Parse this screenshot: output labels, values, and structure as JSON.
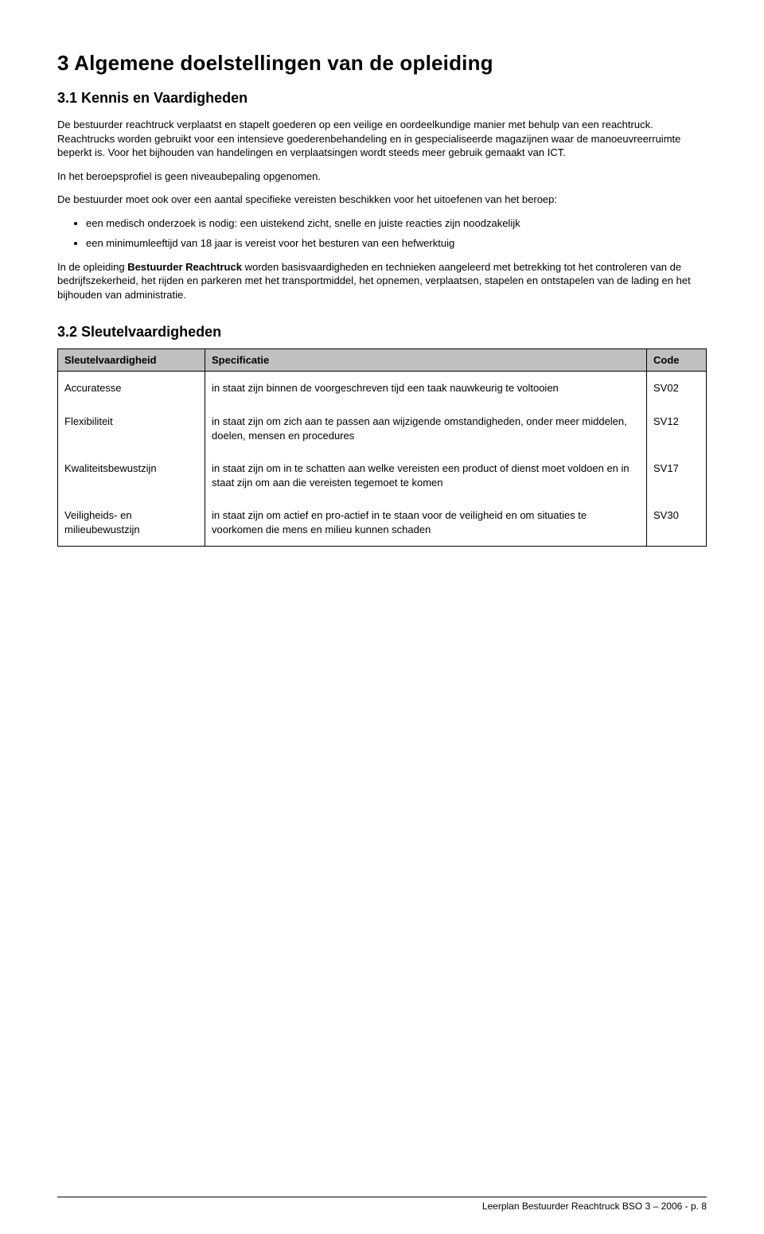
{
  "doc": {
    "h1": "3  Algemene doelstellingen van de opleiding",
    "s31_title": "3.1 Kennis en Vaardigheden",
    "p1": "De bestuurder reachtruck verplaatst en stapelt goederen op een veilige en oordeelkundige manier met behulp van een reachtruck. Reachtrucks worden gebruikt voor een intensieve goederenbehandeling en in gespecialiseerde magazijnen waar de manoeuvreerruimte beperkt is. Voor het bijhouden van handelingen en verplaatsingen wordt steeds meer gebruik gemaakt van ICT.",
    "p2": "In het beroepsprofiel is geen niveaubepaling opgenomen.",
    "p3_intro": "De bestuurder moet ook over een aantal specifieke vereisten beschikken voor het uitoefenen van het beroep:",
    "bullets": [
      "een medisch onderzoek is nodig: een uistekend zicht, snelle en juiste reacties zijn noodzakelijk",
      "een minimumleeftijd van 18 jaar is vereist voor het besturen van een hefwerktuig"
    ],
    "p4": "In de opleiding Bestuurder Reachtruck worden basisvaardigheden en technieken aangeleerd met betrekking tot het controleren van de bedrijfszekerheid, het rijden en parkeren met het transportmiddel, het opnemen, verplaatsen, stapelen en ontstapelen van de lading en het bijhouden van administratie.",
    "p4_bold": "Bestuurder Reachtruck",
    "s32_title": "3.2 Sleutelvaardigheden",
    "table": {
      "header_bg": "#c0c0c0",
      "border_color": "#000000",
      "columns": [
        "Sleutelvaardigheid",
        "Specificatie",
        "Code"
      ],
      "rows": [
        {
          "a": "Accuratesse",
          "b": "in staat zijn binnen de voorgeschreven tijd een taak nauwkeurig te voltooien",
          "c": "SV02"
        },
        {
          "a": "Flexibiliteit",
          "b": "in staat zijn om zich aan te passen aan wijzigende omstandigheden, onder meer middelen, doelen, mensen en procedures",
          "c": "SV12"
        },
        {
          "a": "Kwaliteitsbewustzijn",
          "b": "in staat zijn om in te schatten aan welke vereisten een product of dienst moet voldoen en in staat zijn om aan die vereisten tegemoet te komen",
          "c": "SV17"
        },
        {
          "a": "Veiligheids- en milieubewustzijn",
          "b": "in staat zijn om actief en pro-actief in te staan voor de veiligheid en om situaties te voorkomen die mens en milieu kunnen schaden",
          "c": "SV30"
        }
      ]
    },
    "footer": "Leerplan Bestuurder Reachtruck BSO 3 – 2006 - p. 8"
  },
  "style": {
    "page_bg": "#ffffff",
    "text_color": "#000000",
    "h1_fontsize": 26,
    "h2_fontsize": 18,
    "body_fontsize": 13,
    "footer_fontsize": 12,
    "font_family": "Arial"
  }
}
